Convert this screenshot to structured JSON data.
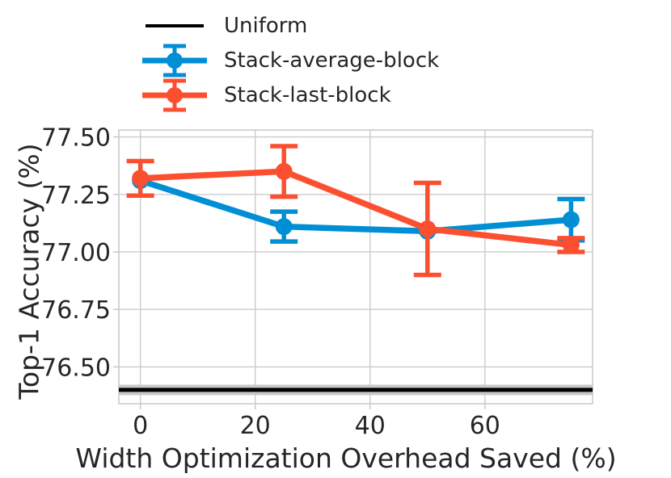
{
  "figure": {
    "background": "#ffffff",
    "text_color": "#262626",
    "grid_color": "#cbcbcb"
  },
  "chart_data": {
    "type": "line",
    "title": "",
    "xlabel": "Width Optimization Overhead Saved (%)",
    "ylabel": "Top-1 Accuracy (%)",
    "xlim": [
      -3.75,
      78.75
    ],
    "ylim": [
      76.34,
      77.53
    ],
    "xticks": [
      0,
      20,
      40,
      60
    ],
    "yticks": [
      76.5,
      76.75,
      77.0,
      77.25,
      77.5
    ],
    "ytick_labels": [
      "76.50",
      "76.75",
      "77.00",
      "77.25",
      "77.50"
    ],
    "grid": true,
    "legend_position": "upper left, above plot",
    "baseline": {
      "name": "Uniform",
      "value": 76.4,
      "color": "#000000",
      "band_color": "#c9c9c9"
    },
    "series": [
      {
        "name": "Stack-average-block",
        "color": "#008fd5",
        "x": [
          0,
          25,
          50,
          75
        ],
        "y": [
          77.31,
          77.11,
          77.09,
          77.14
        ],
        "yerr": [
          0,
          0.065,
          0,
          0.09
        ]
      },
      {
        "name": "Stack-last-block",
        "color": "#fc4f30",
        "x": [
          0,
          25,
          50,
          75
        ],
        "y": [
          77.32,
          77.35,
          77.1,
          77.03
        ],
        "yerr": [
          0.075,
          0.11,
          0.2,
          0.03
        ]
      }
    ]
  },
  "legend": {
    "entries": [
      {
        "label": "Uniform",
        "type": "line",
        "color": "#000000"
      },
      {
        "label": "Stack-average-block",
        "type": "errorbar",
        "color": "#008fd5"
      },
      {
        "label": "Stack-last-block",
        "type": "errorbar",
        "color": "#fc4f30"
      }
    ]
  }
}
